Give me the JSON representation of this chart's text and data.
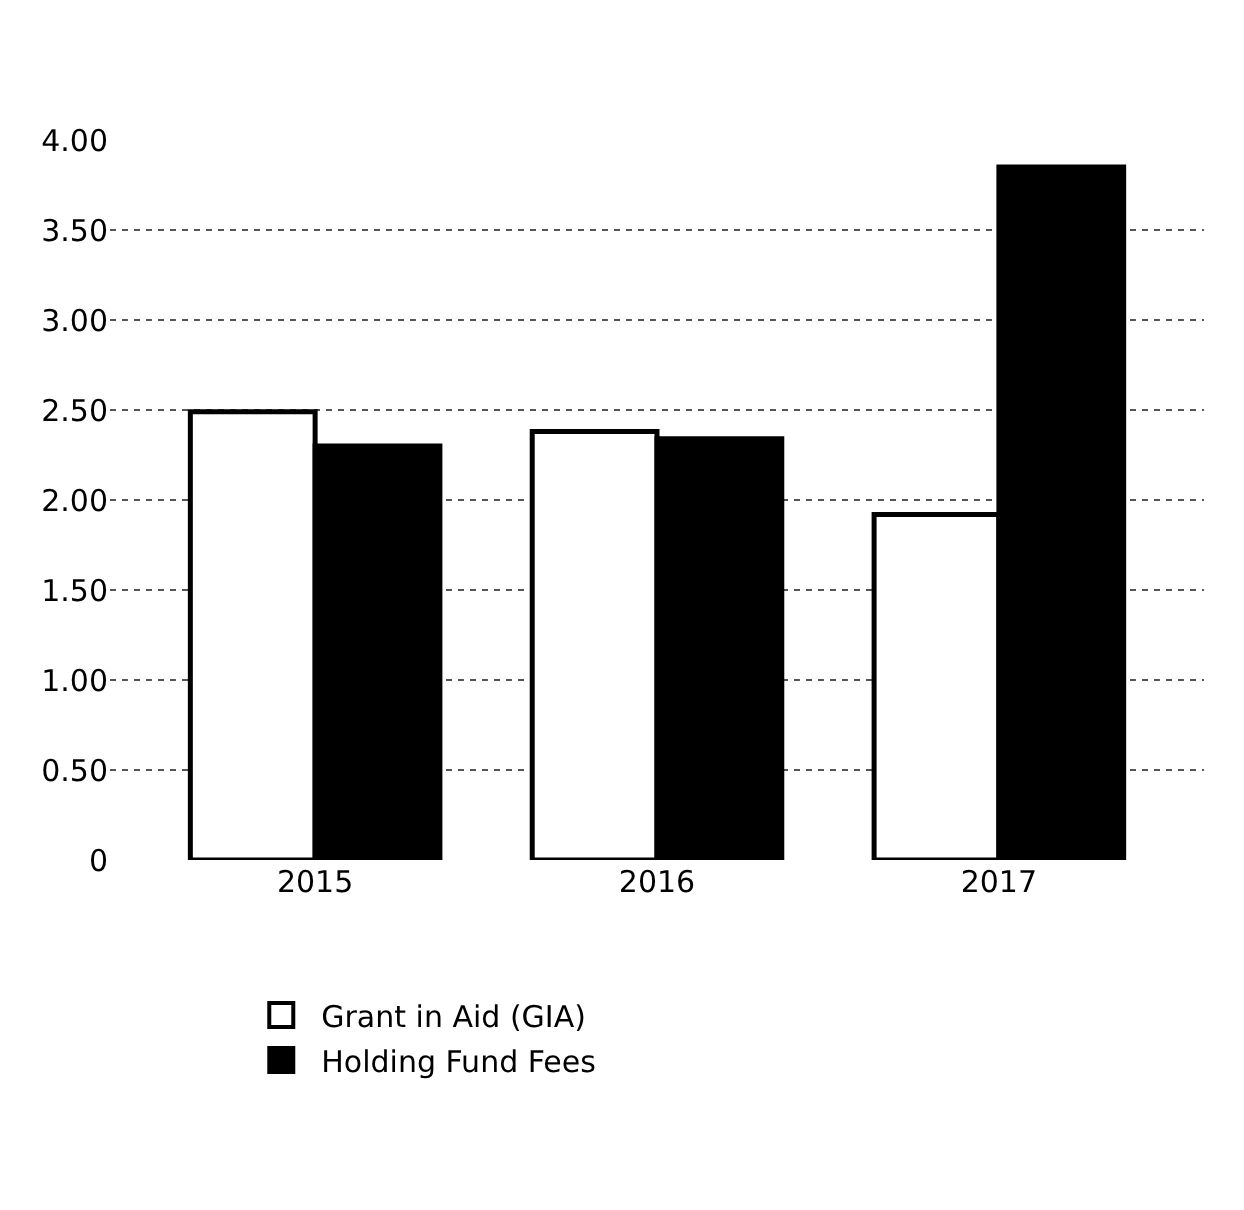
{
  "chart_data": {
    "type": "bar",
    "categories": [
      "2015",
      "2016",
      "2017"
    ],
    "series": [
      {
        "name": "Grant in Aid (GIA)",
        "color": "#ffffff",
        "values": [
          2.49,
          2.38,
          1.92
        ]
      },
      {
        "name": "Holding Fund Fees",
        "color": "#000000",
        "values": [
          2.3,
          2.34,
          3.85
        ]
      }
    ],
    "ylim": [
      0,
      4.0
    ],
    "yticks": [
      {
        "value": 0,
        "label": "0"
      },
      {
        "value": 0.5,
        "label": "0.50"
      },
      {
        "value": 1,
        "label": "1.00"
      },
      {
        "value": 1.5,
        "label": "1.50"
      },
      {
        "value": 2,
        "label": "2.00"
      },
      {
        "value": 2.5,
        "label": "2.50"
      },
      {
        "value": 3,
        "label": "3.00"
      },
      {
        "value": 3.5,
        "label": "3.50"
      },
      {
        "value": 4,
        "label": "4.00"
      }
    ],
    "grid": "y",
    "legend": "bottom left"
  }
}
